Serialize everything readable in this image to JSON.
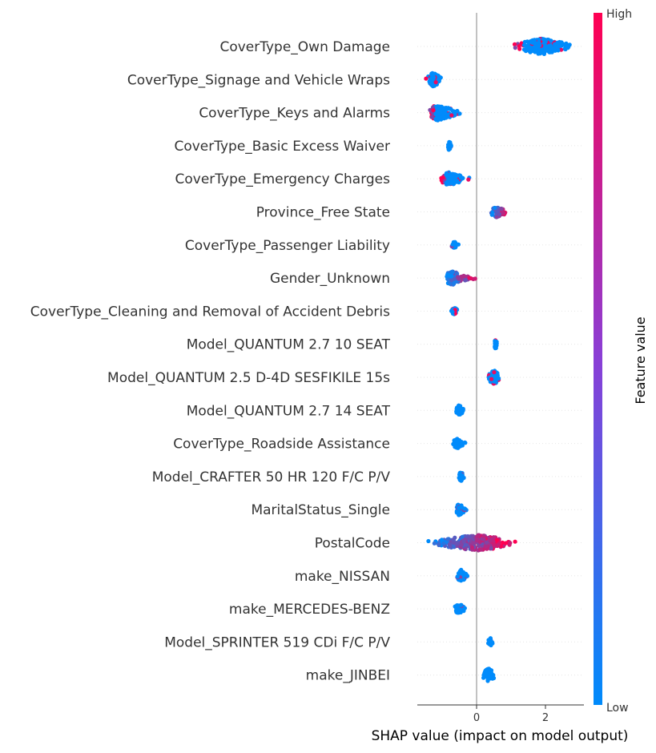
{
  "chart_data": {
    "type": "scatter",
    "subtype": "shap-beeswarm",
    "xlabel": "SHAP value (impact on model output)",
    "xlim": [
      -1.75,
      3.1
    ],
    "xticks": [
      0,
      2
    ],
    "colorbar": {
      "title": "Feature value",
      "high_label": "High",
      "low_label": "Low",
      "low_color": "#008bfb",
      "high_color": "#ff0052"
    },
    "colors": {
      "zero_line": "#999999",
      "grid": "#e6e6e6",
      "axis": "#333333"
    },
    "features": [
      {
        "name": "CoverType_Own Damage",
        "center": 1.9,
        "min": 0.98,
        "max": 2.9,
        "high_side": "low",
        "width": 1.0,
        "point_count": 260
      },
      {
        "name": "CoverType_Signage and Vehicle Wraps",
        "center": -1.25,
        "min": -1.5,
        "max": -1.0,
        "high_side": "low",
        "width": 0.9,
        "point_count": 90
      },
      {
        "name": "CoverType_Keys and Alarms",
        "center": -1.1,
        "min": -1.45,
        "max": -0.25,
        "high_side": "low",
        "width": 1.0,
        "point_count": 150
      },
      {
        "name": "CoverType_Basic Excess Waiver",
        "center": -0.8,
        "min": -0.85,
        "max": -0.7,
        "high_side": "none",
        "width": 0.6,
        "point_count": 30
      },
      {
        "name": "CoverType_Emergency Charges",
        "center": -0.8,
        "min": -1.1,
        "max": -0.1,
        "high_side": "low",
        "width": 0.85,
        "point_count": 120
      },
      {
        "name": "Province_Free State",
        "center": 0.6,
        "min": 0.35,
        "max": 0.95,
        "high_side": "high",
        "width": 0.7,
        "point_count": 60
      },
      {
        "name": "CoverType_Passenger Liability",
        "center": -0.65,
        "min": -0.75,
        "max": -0.5,
        "high_side": "none",
        "width": 0.5,
        "point_count": 30
      },
      {
        "name": "Gender_Unknown",
        "center": -0.7,
        "min": -0.9,
        "max": 0.05,
        "high_side": "high",
        "width": 0.85,
        "point_count": 120
      },
      {
        "name": "CoverType_Cleaning and Removal of Accident Debris",
        "center": -0.65,
        "min": -0.75,
        "max": -0.5,
        "high_side": "center",
        "width": 0.5,
        "point_count": 35
      },
      {
        "name": "Model_QUANTUM 2.7 10 SEAT",
        "center": 0.55,
        "min": 0.5,
        "max": 0.62,
        "high_side": "center",
        "width": 0.6,
        "point_count": 30
      },
      {
        "name": "Model_QUANTUM 2.5 D-4D SESFIKILE 15s",
        "center": 0.5,
        "min": 0.25,
        "max": 0.7,
        "high_side": "low",
        "width": 0.9,
        "point_count": 90
      },
      {
        "name": "Model_QUANTUM 2.7 14 SEAT",
        "center": -0.5,
        "min": -0.6,
        "max": -0.35,
        "high_side": "none",
        "width": 0.7,
        "point_count": 50
      },
      {
        "name": "CoverType_Roadside Assistance",
        "center": -0.55,
        "min": -0.7,
        "max": -0.2,
        "high_side": "none",
        "width": 0.6,
        "point_count": 50
      },
      {
        "name": "Model_CRAFTER 50 HR 120 F/C P/V",
        "center": -0.45,
        "min": -0.55,
        "max": -0.35,
        "high_side": "none",
        "width": 0.6,
        "point_count": 40
      },
      {
        "name": "MaritalStatus_Single",
        "center": -0.5,
        "min": -0.6,
        "max": -0.25,
        "high_side": "none",
        "width": 0.75,
        "point_count": 60
      },
      {
        "name": "PostalCode",
        "center": 0.0,
        "min": -1.6,
        "max": 1.3,
        "high_side": "high",
        "width": 1.0,
        "point_count": 320
      },
      {
        "name": "make_NISSAN",
        "center": -0.45,
        "min": -0.6,
        "max": -0.25,
        "high_side": "none",
        "width": 0.75,
        "point_count": 55
      },
      {
        "name": "make_MERCEDES-BENZ",
        "center": -0.5,
        "min": -0.7,
        "max": -0.25,
        "high_side": "none",
        "width": 0.6,
        "point_count": 60
      },
      {
        "name": "Model_SPRINTER 519 CDi F/C P/V",
        "center": 0.4,
        "min": 0.32,
        "max": 0.48,
        "high_side": "center",
        "width": 0.5,
        "point_count": 30
      },
      {
        "name": "make_JINBEI",
        "center": 0.35,
        "min": 0.15,
        "max": 0.6,
        "high_side": "none",
        "width": 0.85,
        "point_count": 70
      }
    ]
  }
}
